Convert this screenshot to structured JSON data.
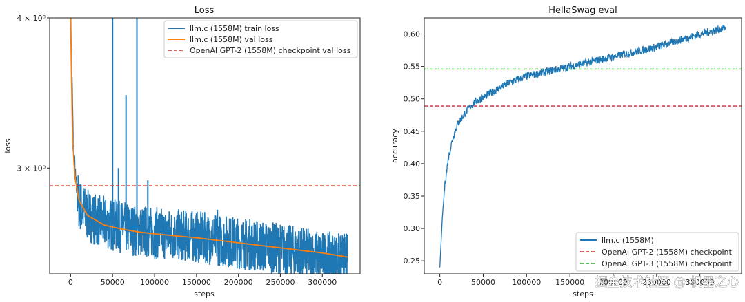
{
  "chart_data": [
    {
      "type": "line",
      "title": "Loss",
      "xlabel": "steps",
      "ylabel": "loss",
      "y_scale": "log",
      "xlim": [
        -25000,
        345000
      ],
      "ylim": [
        2.45,
        4.0
      ],
      "x_ticks": [
        0,
        50000,
        100000,
        150000,
        200000,
        250000,
        300000
      ],
      "y_ticks": [
        {
          "value": 3.0,
          "label": "3 × 10⁰"
        },
        {
          "value": 4.0,
          "label": "4 × 10⁰"
        }
      ],
      "grid": false,
      "legend_position": "top-right",
      "colors": {
        "train": "#1f77b4",
        "val": "#ff7f0e",
        "reference": "#d62728"
      },
      "series": [
        {
          "name": "llm.c (1558M) train loss",
          "style": "solid",
          "x": [
            0,
            3000,
            6000,
            10000,
            20000,
            40000,
            60000,
            80000,
            100000,
            150000,
            200000,
            250000,
            300000,
            330000
          ],
          "y": [
            4.0,
            3.15,
            2.92,
            2.8,
            2.74,
            2.7,
            2.68,
            2.66,
            2.65,
            2.63,
            2.6,
            2.57,
            2.53,
            2.52
          ],
          "noise_band": 0.05,
          "spikes": [
            {
              "x": 50000,
              "y": 4.0
            },
            {
              "x": 57000,
              "y": 3.0
            },
            {
              "x": 66000,
              "y": 3.45
            },
            {
              "x": 79000,
              "y": 4.0
            },
            {
              "x": 92000,
              "y": 2.93
            },
            {
              "x": 175000,
              "y": 2.77
            }
          ]
        },
        {
          "name": "llm.c (1558M) val loss",
          "style": "solid",
          "x": [
            0,
            2000,
            5000,
            10000,
            20000,
            40000,
            60000,
            80000,
            100000,
            150000,
            200000,
            250000,
            300000,
            330000
          ],
          "y": [
            4.0,
            3.2,
            2.95,
            2.82,
            2.74,
            2.69,
            2.67,
            2.655,
            2.645,
            2.625,
            2.6,
            2.575,
            2.55,
            2.53
          ]
        },
        {
          "name": "OpenAI GPT-2 (1558M) checkpoint val loss",
          "style": "dashed",
          "y": 2.9
        }
      ]
    },
    {
      "type": "line",
      "title": "HellaSwag eval",
      "xlabel": "steps",
      "ylabel": "accuracy",
      "xlim": [
        -18000,
        348000
      ],
      "ylim": [
        0.23,
        0.625
      ],
      "x_ticks": [
        0,
        50000,
        100000,
        150000,
        200000,
        250000,
        300000
      ],
      "y_ticks": [
        0.25,
        0.3,
        0.35,
        0.4,
        0.45,
        0.5,
        0.55,
        0.6
      ],
      "grid": false,
      "legend_position": "bottom-right",
      "colors": {
        "main": "#1f77b4",
        "gpt2": "#d62728",
        "gpt3": "#2ca02c"
      },
      "series": [
        {
          "name": "llm.c (1558M)",
          "style": "solid",
          "x": [
            0,
            3000,
            6000,
            10000,
            15000,
            20000,
            30000,
            40000,
            60000,
            80000,
            100000,
            150000,
            200000,
            250000,
            300000,
            330000
          ],
          "y": [
            0.24,
            0.32,
            0.37,
            0.41,
            0.44,
            0.46,
            0.48,
            0.495,
            0.51,
            0.525,
            0.535,
            0.55,
            0.565,
            0.58,
            0.6,
            0.61
          ],
          "noise_band": 0.006
        },
        {
          "name": "OpenAI GPT-2 (1558M) checkpoint",
          "style": "dashed",
          "y": 0.489
        },
        {
          "name": "OpenAI GPT-3 (1558M) checkpoint",
          "style": "dashed",
          "y": 0.546
        }
      ]
    }
  ],
  "watermark": "掘金技术社区 @ 机器之心"
}
